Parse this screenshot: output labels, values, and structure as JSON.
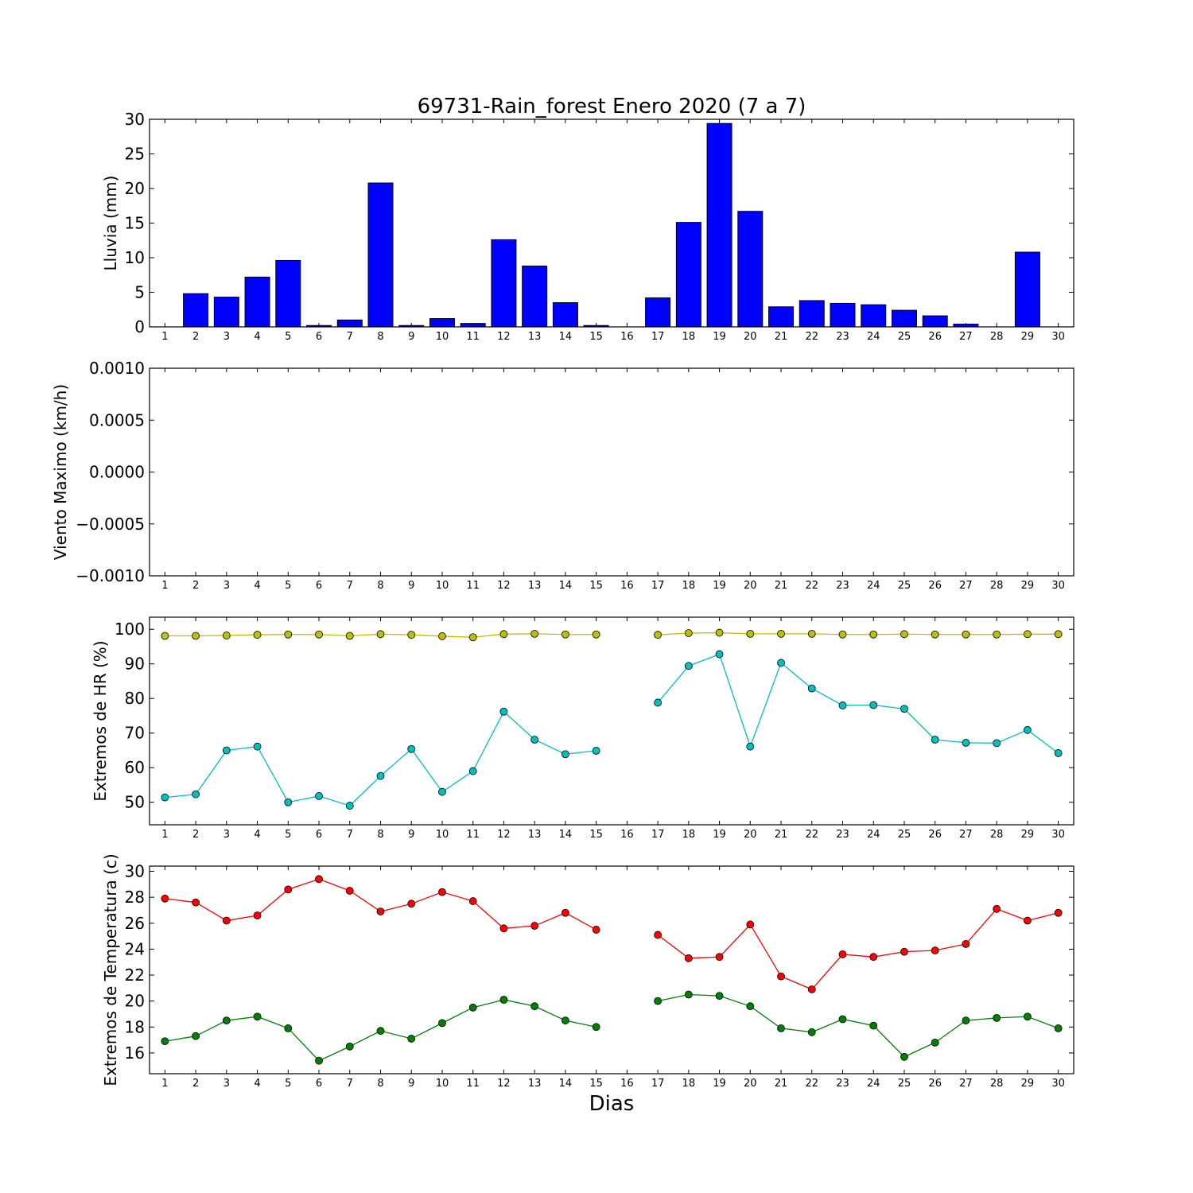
{
  "chart_data": [
    {
      "type": "bar",
      "title": "69731-Rain_forest Enero 2020  (7 a 7)",
      "ylabel": "Lluvia (mm)",
      "categories": [
        "1",
        "2",
        "3",
        "4",
        "5",
        "6",
        "7",
        "8",
        "9",
        "10",
        "11",
        "12",
        "13",
        "14",
        "15",
        "16",
        "17",
        "18",
        "19",
        "20",
        "21",
        "22",
        "23",
        "24",
        "25",
        "26",
        "27",
        "28",
        "29",
        "30"
      ],
      "values": [
        0,
        4.8,
        4.3,
        7.2,
        9.6,
        0.2,
        1.0,
        20.8,
        0.2,
        1.2,
        0.5,
        12.6,
        8.8,
        3.5,
        0.2,
        0,
        4.2,
        15.1,
        29.4,
        16.7,
        2.9,
        3.8,
        3.4,
        3.2,
        2.4,
        1.6,
        0.4,
        0,
        10.8,
        0
      ],
      "color": "#0000ff",
      "ylim": [
        0,
        30
      ],
      "yticks": [
        "0",
        "5",
        "10",
        "15",
        "20",
        "25",
        "30"
      ]
    },
    {
      "type": "line",
      "title": "",
      "ylabel": "Viento Maximo (km/h)",
      "categories": [
        "1",
        "2",
        "3",
        "4",
        "5",
        "6",
        "7",
        "8",
        "9",
        "10",
        "11",
        "12",
        "13",
        "14",
        "15",
        "16",
        "17",
        "18",
        "19",
        "20",
        "21",
        "22",
        "23",
        "24",
        "25",
        "26",
        "27",
        "28",
        "29",
        "30"
      ],
      "series": [],
      "ylim": [
        -0.001,
        0.001
      ],
      "yticks": [
        "−0.0010",
        "−0.0005",
        "0.0000",
        "0.0005",
        "0.0010"
      ]
    },
    {
      "type": "line",
      "title": "",
      "ylabel": "Extremos de HR (%)",
      "categories": [
        "1",
        "2",
        "3",
        "4",
        "5",
        "6",
        "7",
        "8",
        "9",
        "10",
        "11",
        "12",
        "13",
        "14",
        "15",
        "16",
        "17",
        "18",
        "19",
        "20",
        "21",
        "22",
        "23",
        "24",
        "25",
        "26",
        "27",
        "28",
        "29",
        "30"
      ],
      "ylim": [
        43.5,
        103.5
      ],
      "yticks": [
        "50",
        "60",
        "70",
        "80",
        "90",
        "100"
      ],
      "series": [
        {
          "color": "#bfbf00",
          "values": [
            98.1,
            98.1,
            98.2,
            98.4,
            98.5,
            98.5,
            98.1,
            98.6,
            98.4,
            98.0,
            97.7,
            98.6,
            98.7,
            98.5,
            98.5,
            null,
            98.4,
            98.9,
            99.0,
            98.7,
            98.7,
            98.7,
            98.5,
            98.5,
            98.6,
            98.5,
            98.5,
            98.5,
            98.6,
            98.6
          ]
        },
        {
          "color": "#00bfbf",
          "values": [
            51.4,
            52.3,
            65.0,
            66.1,
            50.0,
            51.8,
            49.0,
            57.6,
            65.4,
            53.0,
            59.0,
            76.2,
            68.1,
            63.9,
            64.9,
            null,
            78.8,
            89.4,
            92.8,
            66.1,
            90.3,
            82.9,
            78.0,
            78.1,
            77.0,
            68.1,
            67.2,
            67.1,
            70.9,
            64.2
          ]
        }
      ]
    },
    {
      "type": "line",
      "title": "",
      "ylabel": "Extremos de Temperatura (c)",
      "xlabel": "Dias",
      "categories": [
        "1",
        "2",
        "3",
        "4",
        "5",
        "6",
        "7",
        "8",
        "9",
        "10",
        "11",
        "12",
        "13",
        "14",
        "15",
        "16",
        "17",
        "18",
        "19",
        "20",
        "21",
        "22",
        "23",
        "24",
        "25",
        "26",
        "27",
        "28",
        "29",
        "30"
      ],
      "ylim": [
        14.4,
        30.4
      ],
      "yticks": [
        "16",
        "18",
        "20",
        "22",
        "24",
        "26",
        "28",
        "30"
      ],
      "series": [
        {
          "color": "#ff0000",
          "values": [
            27.9,
            27.6,
            26.2,
            26.6,
            28.6,
            29.4,
            28.5,
            26.9,
            27.5,
            28.4,
            27.7,
            25.6,
            25.8,
            26.8,
            25.5,
            null,
            25.1,
            23.3,
            23.4,
            25.9,
            21.9,
            20.9,
            23.6,
            23.4,
            23.8,
            23.9,
            24.4,
            27.1,
            26.2,
            26.8
          ]
        },
        {
          "color": "#008000",
          "values": [
            16.9,
            17.3,
            18.5,
            18.8,
            17.9,
            15.4,
            16.5,
            17.7,
            17.1,
            18.3,
            19.5,
            20.1,
            19.6,
            18.5,
            18.0,
            null,
            20.0,
            20.5,
            20.4,
            19.6,
            17.9,
            17.6,
            18.6,
            18.1,
            15.7,
            16.8,
            18.5,
            18.7,
            18.8,
            17.9
          ]
        }
      ]
    }
  ]
}
